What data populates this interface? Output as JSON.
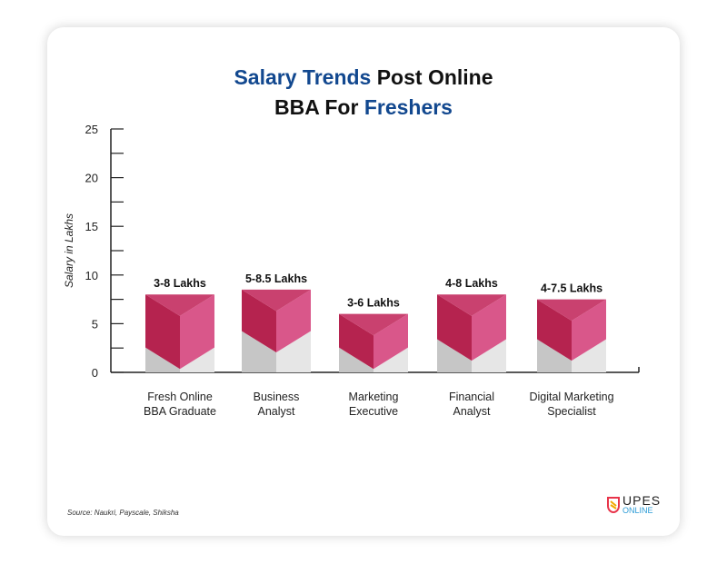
{
  "title": {
    "part1": "Salary Trends",
    "part2": " Post Online",
    "part3": "BBA For ",
    "part4": "Freshers"
  },
  "source": "Source: Naukri, Payscale, Shiksha",
  "logo": {
    "line1": "UPES",
    "line2": "ONLINE"
  },
  "colors": {
    "left": "#b5234f",
    "right": "#d9578a",
    "top": "#c9416f",
    "grayLeft": "#c6c6c6",
    "grayRight": "#e6e6e6"
  },
  "chart_data": {
    "type": "bar",
    "title": "Salary Trends Post Online BBA For Freshers",
    "ylabel": "Salary in Lakhs",
    "xlabel": "",
    "ylim": [
      0,
      25
    ],
    "yticks": [
      0,
      5,
      10,
      15,
      20,
      25
    ],
    "categories": [
      [
        "Fresh Online",
        "BBA Graduate"
      ],
      [
        "Business",
        "Analyst"
      ],
      [
        "Marketing",
        "Executive"
      ],
      [
        "Financial",
        "Analyst"
      ],
      [
        "Digital Marketing",
        "Specialist"
      ]
    ],
    "min": [
      3,
      5,
      3,
      4,
      4
    ],
    "max": [
      8,
      8.5,
      6,
      8,
      7.5
    ],
    "labels": [
      "3-8 Lakhs",
      "5-8.5 Lakhs",
      "3-6 Lakhs",
      "4-8 Lakhs",
      "4-7.5 Lakhs"
    ]
  }
}
